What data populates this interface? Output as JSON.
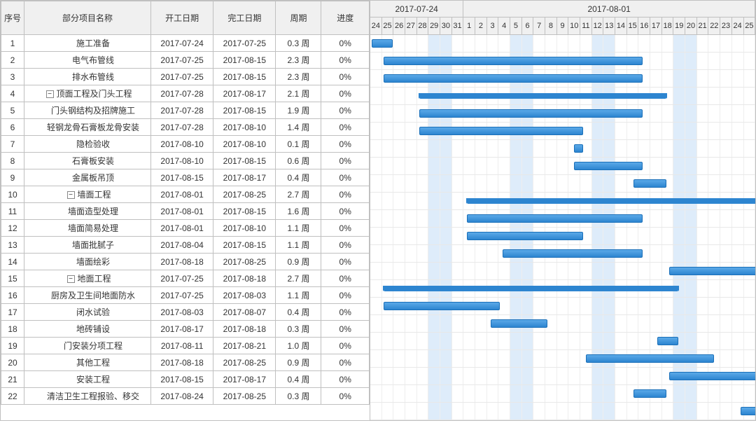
{
  "columns": {
    "seq": "序号",
    "name": "部分项目名称",
    "start": "开工日期",
    "end": "完工日期",
    "duration": "周期",
    "progress": "进度"
  },
  "timeline": {
    "startDate": "2017-07-24",
    "dayWidth": 17,
    "months": [
      {
        "label": "2017-07-24",
        "days": 8
      },
      {
        "label": "2017-08-01",
        "days": 25
      }
    ],
    "days": [
      {
        "d": "24",
        "w": false
      },
      {
        "d": "25",
        "w": false
      },
      {
        "d": "26",
        "w": false
      },
      {
        "d": "27",
        "w": false
      },
      {
        "d": "28",
        "w": false
      },
      {
        "d": "29",
        "w": true
      },
      {
        "d": "30",
        "w": true
      },
      {
        "d": "31",
        "w": false
      },
      {
        "d": "1",
        "w": false
      },
      {
        "d": "2",
        "w": false
      },
      {
        "d": "3",
        "w": false
      },
      {
        "d": "4",
        "w": false
      },
      {
        "d": "5",
        "w": true
      },
      {
        "d": "6",
        "w": true
      },
      {
        "d": "7",
        "w": false
      },
      {
        "d": "8",
        "w": false
      },
      {
        "d": "9",
        "w": false
      },
      {
        "d": "10",
        "w": false
      },
      {
        "d": "11",
        "w": false
      },
      {
        "d": "12",
        "w": true
      },
      {
        "d": "13",
        "w": true
      },
      {
        "d": "14",
        "w": false
      },
      {
        "d": "15",
        "w": false
      },
      {
        "d": "16",
        "w": false
      },
      {
        "d": "17",
        "w": false
      },
      {
        "d": "18",
        "w": false
      },
      {
        "d": "19",
        "w": true
      },
      {
        "d": "20",
        "w": true
      },
      {
        "d": "21",
        "w": false
      },
      {
        "d": "22",
        "w": false
      },
      {
        "d": "23",
        "w": false
      },
      {
        "d": "24",
        "w": false
      },
      {
        "d": "25",
        "w": false
      }
    ],
    "weekendColor": "rgba(160,200,240,0.35)",
    "barColor": "#2d85d0",
    "barGradientTop": "#5ba9e8",
    "barBorder": "#1a6fb8"
  },
  "tasks": [
    {
      "seq": 1,
      "name": "施工准备",
      "start": "2017-07-24",
      "end": "2017-07-25",
      "duration": "0.3 周",
      "progress": "0%",
      "indent": 1,
      "summary": false,
      "barStart": 0,
      "barLen": 2
    },
    {
      "seq": 2,
      "name": "电气布管线",
      "start": "2017-07-25",
      "end": "2017-08-15",
      "duration": "2.3 周",
      "progress": "0%",
      "indent": 1,
      "summary": false,
      "barStart": 1,
      "barLen": 22
    },
    {
      "seq": 3,
      "name": "排水布管线",
      "start": "2017-07-25",
      "end": "2017-08-15",
      "duration": "2.3 周",
      "progress": "0%",
      "indent": 1,
      "summary": false,
      "barStart": 1,
      "barLen": 22
    },
    {
      "seq": 4,
      "name": "顶面工程及门头工程",
      "start": "2017-07-28",
      "end": "2017-08-17",
      "duration": "2.1 周",
      "progress": "0%",
      "indent": 0,
      "summary": true,
      "exp": "−",
      "barStart": 4,
      "barLen": 21
    },
    {
      "seq": 5,
      "name": "门头钢结构及招牌施工",
      "start": "2017-07-28",
      "end": "2017-08-15",
      "duration": "1.9 周",
      "progress": "0%",
      "indent": 1,
      "summary": false,
      "barStart": 4,
      "barLen": 19
    },
    {
      "seq": 6,
      "name": "轻钢龙骨石膏板龙骨安装",
      "start": "2017-07-28",
      "end": "2017-08-10",
      "duration": "1.4 周",
      "progress": "0%",
      "indent": 1,
      "summary": false,
      "barStart": 4,
      "barLen": 14
    },
    {
      "seq": 7,
      "name": "隐检验收",
      "start": "2017-08-10",
      "end": "2017-08-10",
      "duration": "0.1 周",
      "progress": "0%",
      "indent": 1,
      "summary": false,
      "barStart": 17,
      "barLen": 1
    },
    {
      "seq": 8,
      "name": "石膏板安装",
      "start": "2017-08-10",
      "end": "2017-08-15",
      "duration": "0.6 周",
      "progress": "0%",
      "indent": 1,
      "summary": false,
      "barStart": 17,
      "barLen": 6
    },
    {
      "seq": 9,
      "name": "金属板吊顶",
      "start": "2017-08-15",
      "end": "2017-08-17",
      "duration": "0.4 周",
      "progress": "0%",
      "indent": 1,
      "summary": false,
      "barStart": 22,
      "barLen": 3
    },
    {
      "seq": 10,
      "name": "墙面工程",
      "start": "2017-08-01",
      "end": "2017-08-25",
      "duration": "2.7 周",
      "progress": "0%",
      "indent": 0,
      "summary": true,
      "exp": "−",
      "barStart": 8,
      "barLen": 25
    },
    {
      "seq": 11,
      "name": "墙面造型处理",
      "start": "2017-08-01",
      "end": "2017-08-15",
      "duration": "1.6 周",
      "progress": "0%",
      "indent": 1,
      "summary": false,
      "barStart": 8,
      "barLen": 15
    },
    {
      "seq": 12,
      "name": "墙面简易处理",
      "start": "2017-08-01",
      "end": "2017-08-10",
      "duration": "1.1 周",
      "progress": "0%",
      "indent": 1,
      "summary": false,
      "barStart": 8,
      "barLen": 10
    },
    {
      "seq": 13,
      "name": "墙面批腻子",
      "start": "2017-08-04",
      "end": "2017-08-15",
      "duration": "1.1 周",
      "progress": "0%",
      "indent": 1,
      "summary": false,
      "barStart": 11,
      "barLen": 12
    },
    {
      "seq": 14,
      "name": "墙面绘彩",
      "start": "2017-08-18",
      "end": "2017-08-25",
      "duration": "0.9 周",
      "progress": "0%",
      "indent": 1,
      "summary": false,
      "barStart": 25,
      "barLen": 8
    },
    {
      "seq": 15,
      "name": "地面工程",
      "start": "2017-07-25",
      "end": "2017-08-18",
      "duration": "2.7 周",
      "progress": "0%",
      "indent": 0,
      "summary": true,
      "exp": "−",
      "barStart": 1,
      "barLen": 25
    },
    {
      "seq": 16,
      "name": "厨房及卫生间地面防水",
      "start": "2017-07-25",
      "end": "2017-08-03",
      "duration": "1.1 周",
      "progress": "0%",
      "indent": 1,
      "summary": false,
      "barStart": 1,
      "barLen": 10
    },
    {
      "seq": 17,
      "name": "闭水试验",
      "start": "2017-08-03",
      "end": "2017-08-07",
      "duration": "0.4 周",
      "progress": "0%",
      "indent": 1,
      "summary": false,
      "barStart": 10,
      "barLen": 5
    },
    {
      "seq": 18,
      "name": "地砖铺设",
      "start": "2017-08-17",
      "end": "2017-08-18",
      "duration": "0.3 周",
      "progress": "0%",
      "indent": 1,
      "summary": false,
      "barStart": 24,
      "barLen": 2
    },
    {
      "seq": 19,
      "name": "门安装分项工程",
      "start": "2017-08-11",
      "end": "2017-08-21",
      "duration": "1.0 周",
      "progress": "0%",
      "indent": 1,
      "summary": false,
      "barStart": 18,
      "barLen": 11
    },
    {
      "seq": 20,
      "name": "其他工程",
      "start": "2017-08-18",
      "end": "2017-08-25",
      "duration": "0.9 周",
      "progress": "0%",
      "indent": 1,
      "summary": false,
      "barStart": 25,
      "barLen": 8
    },
    {
      "seq": 21,
      "name": "安装工程",
      "start": "2017-08-15",
      "end": "2017-08-17",
      "duration": "0.4 周",
      "progress": "0%",
      "indent": 1,
      "summary": false,
      "barStart": 22,
      "barLen": 3
    },
    {
      "seq": 22,
      "name": "清洁卫生工程报验、移交",
      "start": "2017-08-24",
      "end": "2017-08-25",
      "duration": "0.3 周",
      "progress": "0%",
      "indent": 1,
      "summary": false,
      "barStart": 31,
      "barLen": 2
    }
  ]
}
